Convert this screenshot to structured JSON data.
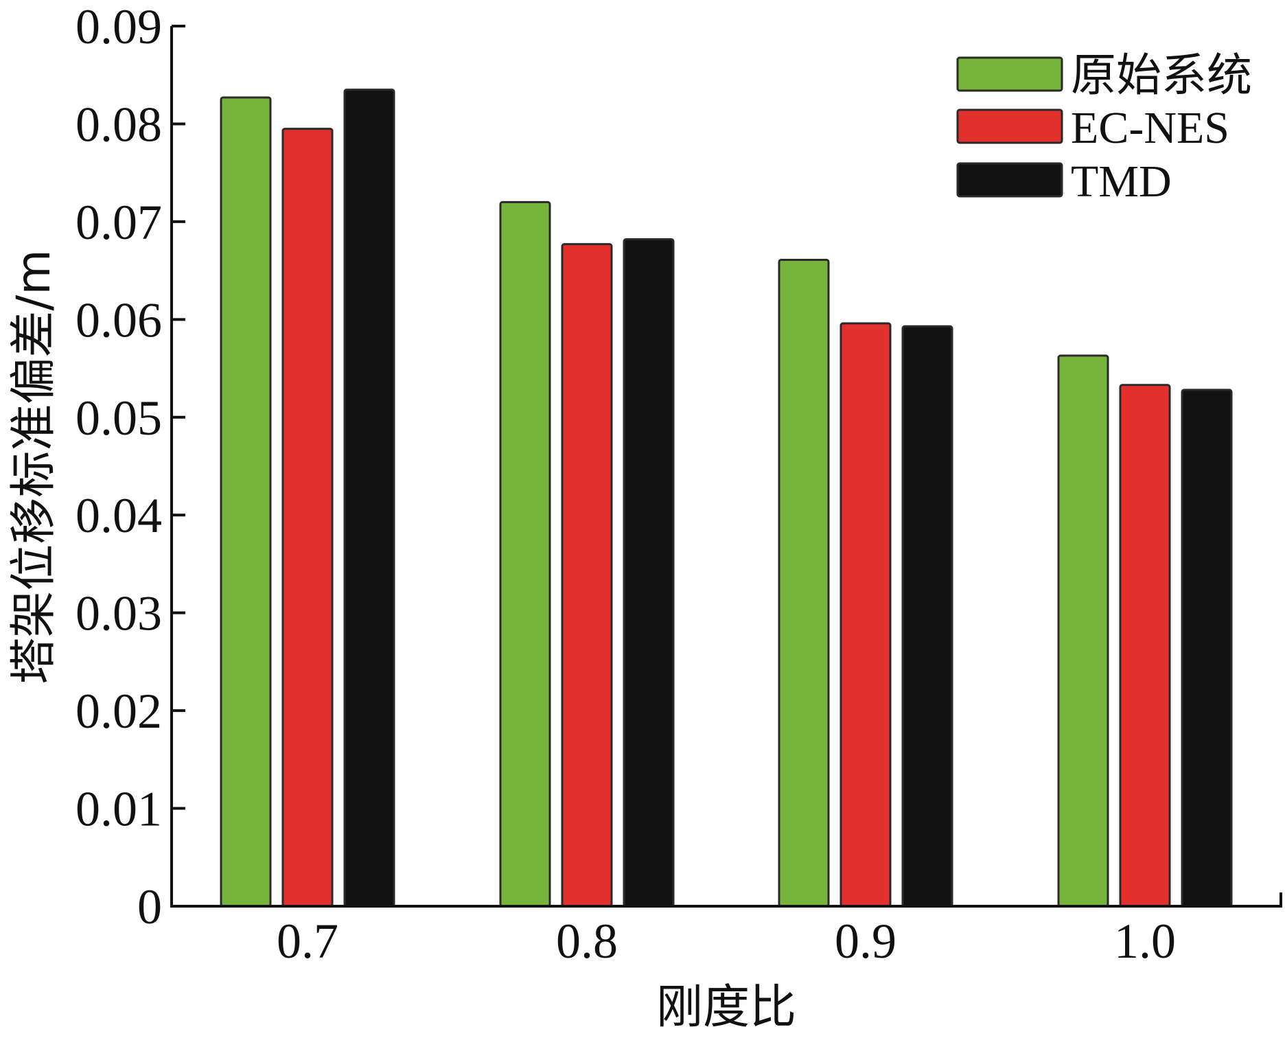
{
  "chart_data": {
    "type": "bar",
    "categories": [
      "0.7",
      "0.8",
      "0.9",
      "1.0"
    ],
    "series": [
      {
        "name": "原始系统",
        "color": "#76b43c",
        "values": [
          0.0827,
          0.072,
          0.0661,
          0.0563
        ]
      },
      {
        "name": "EC-NES",
        "color": "#e2302c",
        "values": [
          0.0795,
          0.0677,
          0.0596,
          0.0533
        ]
      },
      {
        "name": "TMD",
        "color": "#111111",
        "values": [
          0.0835,
          0.0682,
          0.0593,
          0.0528
        ]
      }
    ],
    "xlabel": "刚度比",
    "ylabel": "塔架位移标准偏差/m",
    "ylim": [
      0,
      0.09
    ],
    "yticks": [
      "0",
      "0.01",
      "0.02",
      "0.03",
      "0.04",
      "0.05",
      "0.06",
      "0.07",
      "0.08",
      "0.09"
    ],
    "grid": false,
    "legend_position": "top-right"
  }
}
